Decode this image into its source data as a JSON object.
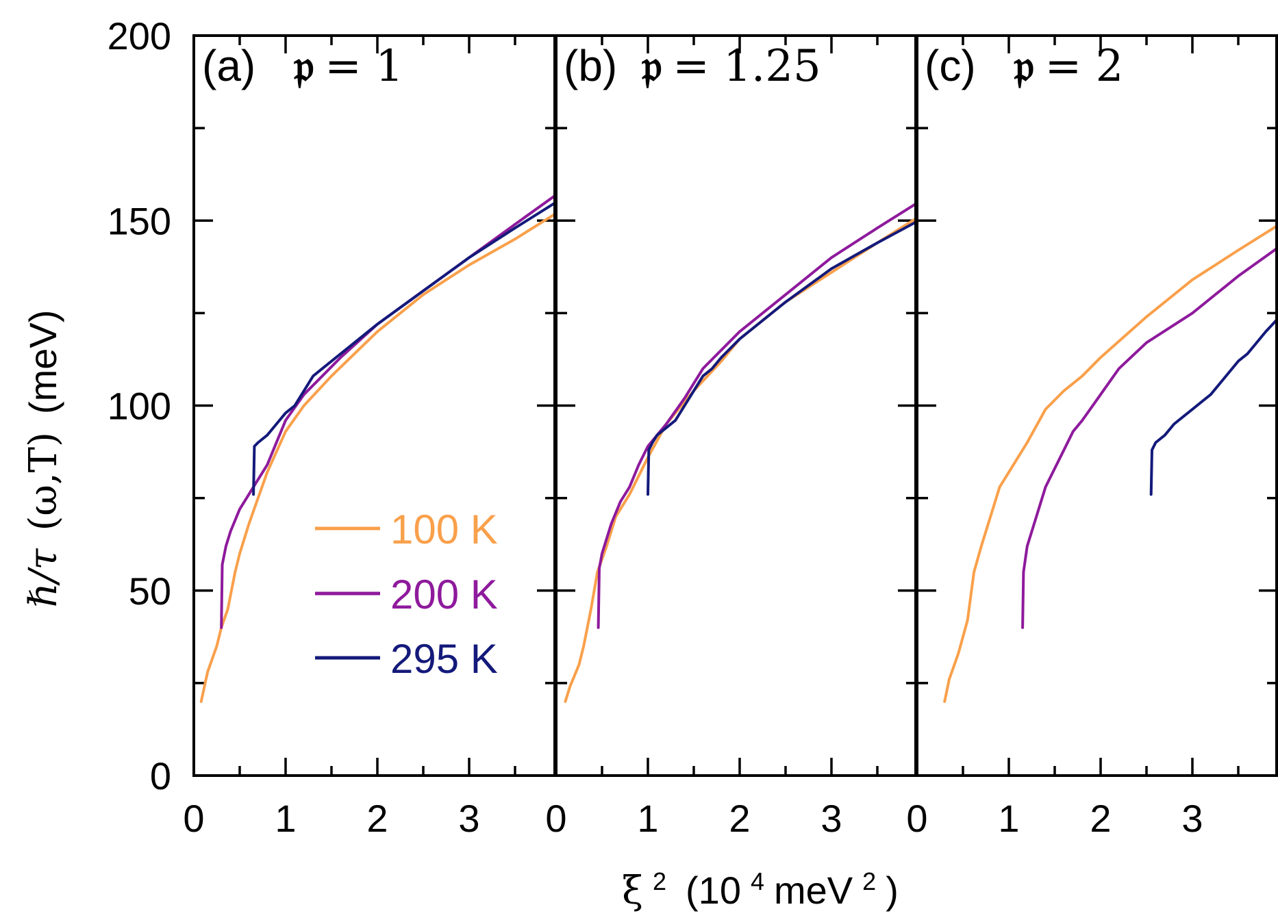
{
  "chart_data": {
    "type": "line",
    "y_axis": {
      "label_parts": [
        "ℏ/τ",
        "(ω,T)",
        "(meV)"
      ],
      "ylim": [
        0,
        200
      ],
      "ticks": [
        0,
        50,
        100,
        150,
        200
      ],
      "tick_labels": [
        "0",
        "50",
        "100",
        "150",
        "200"
      ]
    },
    "x_axis": {
      "label_parts": [
        "ξ",
        "2",
        "(10",
        "4",
        " meV",
        "2",
        ")"
      ],
      "xlim": [
        0,
        3.95
      ],
      "ticks": [
        0,
        1,
        2,
        3
      ],
      "tick_labels": [
        "0",
        "1",
        "2",
        "3"
      ]
    },
    "legend": {
      "location": "lower-right of panel (a)",
      "entries": [
        {
          "label": "100 K",
          "color": "#F9A04B"
        },
        {
          "label": "200 K",
          "color": "#8E1A9C"
        },
        {
          "label": "295 K",
          "color": "#141A7A"
        }
      ]
    },
    "panels": [
      {
        "id": "a",
        "label_tag": "(a)",
        "label_symbol": "𝔭",
        "label_eq": " = 1",
        "series": [
          {
            "name": "100 K",
            "color": "#F9A04B",
            "x": [
              0.08,
              0.15,
              0.25,
              0.3,
              0.37,
              0.45,
              0.5,
              0.6,
              0.7,
              0.8,
              1.0,
              1.2,
              1.5,
              2.0,
              2.5,
              3.0,
              3.5,
              3.95
            ],
            "y": [
              20,
              28,
              35,
              40,
              45,
              55,
              60,
              68,
              75,
              82,
              93,
              100,
              108,
              120,
              130,
              138,
              145,
              152
            ]
          },
          {
            "name": "200 K",
            "color": "#8E1A9C",
            "x": [
              0.3,
              0.31,
              0.35,
              0.4,
              0.5,
              0.6,
              0.7,
              0.8,
              0.9,
              1.0,
              1.2,
              1.4,
              1.6,
              2.0,
              2.5,
              3.0,
              3.5,
              3.95
            ],
            "y": [
              40,
              57,
              62,
              66,
              72,
              76,
              80,
              84,
              90,
              96,
              103,
              108,
              113,
              122,
              131,
              140,
              149,
              157
            ]
          },
          {
            "name": "295 K",
            "color": "#141A7A",
            "x": [
              0.65,
              0.66,
              0.7,
              0.8,
              0.9,
              1.0,
              1.1,
              1.2,
              1.3,
              1.4,
              1.6,
              1.8,
              2.0,
              2.5,
              3.0,
              3.5,
              3.95
            ],
            "y": [
              76,
              89,
              90,
              92,
              95,
              98,
              100,
              104,
              108,
              110,
              114,
              118,
              122,
              131,
              140,
              148,
              155
            ]
          }
        ]
      },
      {
        "id": "b",
        "label_tag": "(b)",
        "label_symbol": "𝔭",
        "label_eq": " = 1.25",
        "series": [
          {
            "name": "100 K",
            "color": "#F9A04B",
            "x": [
              0.1,
              0.15,
              0.25,
              0.3,
              0.38,
              0.45,
              0.55,
              0.65,
              0.8,
              1.0,
              1.2,
              1.5,
              1.8,
              2.0,
              2.5,
              3.0,
              3.5,
              3.95
            ],
            "y": [
              20,
              24,
              30,
              35,
              45,
              55,
              62,
              70,
              76,
              86,
              95,
              104,
              112,
              118,
              128,
              136,
              144,
              151
            ]
          },
          {
            "name": "200 K",
            "color": "#8E1A9C",
            "x": [
              0.46,
              0.47,
              0.5,
              0.6,
              0.7,
              0.8,
              0.9,
              1.0,
              1.1,
              1.2,
              1.4,
              1.6,
              2.0,
              2.5,
              3.0,
              3.5,
              3.95
            ],
            "y": [
              40,
              56,
              60,
              68,
              74,
              78,
              84,
              89,
              92,
              95,
              102,
              110,
              120,
              130,
              140,
              148,
              155
            ]
          },
          {
            "name": "295 K",
            "color": "#141A7A",
            "x": [
              1.0,
              1.01,
              1.05,
              1.1,
              1.2,
              1.3,
              1.4,
              1.5,
              1.6,
              1.7,
              1.8,
              2.0,
              2.5,
              3.0,
              3.5,
              3.95
            ],
            "y": [
              76,
              88,
              90,
              92,
              94,
              96,
              100,
              104,
              108,
              110,
              113,
              118,
              128,
              137,
              144,
              150
            ]
          }
        ]
      },
      {
        "id": "c",
        "label_tag": "(c)",
        "label_symbol": "𝔭",
        "label_eq": " = 2",
        "series": [
          {
            "name": "100 K",
            "color": "#F9A04B",
            "x": [
              0.3,
              0.35,
              0.45,
              0.55,
              0.62,
              0.7,
              0.8,
              0.9,
              1.0,
              1.2,
              1.4,
              1.6,
              1.8,
              2.0,
              2.5,
              3.0,
              3.5,
              3.95
            ],
            "y": [
              20,
              26,
              33,
              42,
              55,
              62,
              70,
              78,
              82,
              90,
              99,
              104,
              108,
              113,
              124,
              134,
              142,
              149
            ]
          },
          {
            "name": "200 K",
            "color": "#8E1A9C",
            "x": [
              1.15,
              1.16,
              1.2,
              1.3,
              1.4,
              1.5,
              1.6,
              1.7,
              1.8,
              2.0,
              2.2,
              2.5,
              3.0,
              3.5,
              3.95
            ],
            "y": [
              40,
              55,
              62,
              70,
              78,
              83,
              88,
              93,
              96,
              103,
              110,
              117,
              125,
              135,
              143
            ]
          },
          {
            "name": "295 K",
            "color": "#141A7A",
            "x": [
              2.55,
              2.56,
              2.6,
              2.7,
              2.8,
              2.9,
              3.0,
              3.1,
              3.2,
              3.3,
              3.4,
              3.5,
              3.6,
              3.7,
              3.8,
              3.95
            ],
            "y": [
              76,
              88,
              90,
              92,
              95,
              97,
              99,
              101,
              103,
              106,
              109,
              112,
              114,
              117,
              120,
              124
            ]
          }
        ]
      }
    ]
  }
}
